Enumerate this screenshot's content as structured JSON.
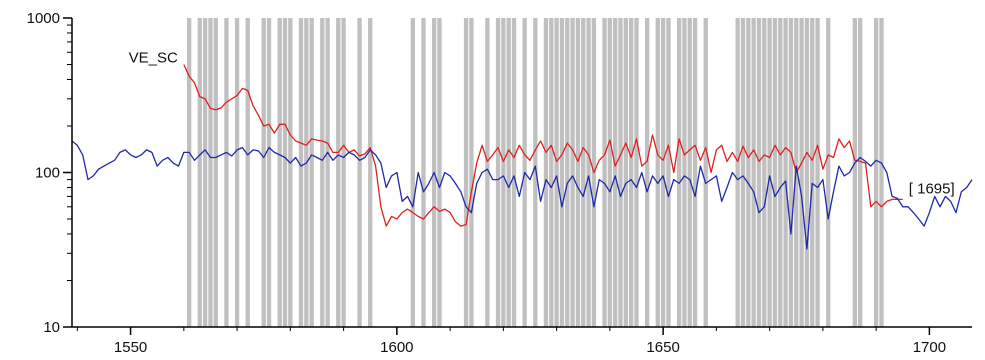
{
  "chart_data": {
    "type": "line",
    "title": "",
    "xlabel": "",
    "ylabel": "",
    "xlim": [
      1539,
      1708
    ],
    "ylim": [
      10,
      1000
    ],
    "y_scale": "log",
    "grid": false,
    "x_ticks": [
      1550,
      1600,
      1650,
      1700
    ],
    "x_tick_labels": [
      "1550",
      "1600",
      "1650",
      "1700"
    ],
    "y_ticks": [
      10,
      100,
      1000
    ],
    "y_tick_labels": [
      "10",
      "100",
      "1000"
    ],
    "shading": {
      "color": "#c0c0c0",
      "year_bands": [
        1561,
        1563,
        1564,
        1565,
        1566,
        1568,
        1570,
        1572,
        1575,
        1576,
        1578,
        1579,
        1580,
        1582,
        1583,
        1584,
        1586,
        1587,
        1589,
        1590,
        1593,
        1595,
        1603,
        1605,
        1607,
        1608,
        1613,
        1614,
        1617,
        1619,
        1620,
        1621,
        1622,
        1624,
        1626,
        1628,
        1629,
        1630,
        1631,
        1632,
        1633,
        1634,
        1635,
        1636,
        1637,
        1639,
        1640,
        1641,
        1642,
        1643,
        1644,
        1645,
        1647,
        1649,
        1650,
        1651,
        1653,
        1654,
        1655,
        1656,
        1658,
        1664,
        1665,
        1666,
        1667,
        1668,
        1669,
        1670,
        1671,
        1672,
        1673,
        1674,
        1675,
        1676,
        1677,
        1678,
        1679,
        1681,
        1686,
        1687,
        1690,
        1691
      ]
    },
    "series": [
      {
        "name": "VE_SC",
        "color": "#e02020",
        "x": [
          1560,
          1561,
          1562,
          1563,
          1564,
          1565,
          1566,
          1567,
          1568,
          1569,
          1570,
          1571,
          1572,
          1573,
          1574,
          1575,
          1576,
          1577,
          1578,
          1579,
          1580,
          1581,
          1582,
          1583,
          1584,
          1585,
          1586,
          1587,
          1588,
          1589,
          1590,
          1591,
          1592,
          1593,
          1594,
          1595,
          1596,
          1597,
          1598,
          1599,
          1600,
          1601,
          1602,
          1603,
          1604,
          1605,
          1606,
          1607,
          1608,
          1609,
          1610,
          1611,
          1612,
          1613,
          1614,
          1615,
          1616,
          1617,
          1618,
          1619,
          1620,
          1621,
          1622,
          1623,
          1624,
          1625,
          1626,
          1627,
          1628,
          1629,
          1630,
          1631,
          1632,
          1633,
          1634,
          1635,
          1636,
          1637,
          1638,
          1639,
          1640,
          1641,
          1642,
          1643,
          1644,
          1645,
          1646,
          1647,
          1648,
          1649,
          1650,
          1651,
          1652,
          1653,
          1654,
          1655,
          1656,
          1657,
          1658,
          1659,
          1660,
          1661,
          1662,
          1663,
          1664,
          1665,
          1666,
          1667,
          1668,
          1669,
          1670,
          1671,
          1672,
          1673,
          1674,
          1675,
          1676,
          1677,
          1678,
          1679,
          1680,
          1681,
          1682,
          1683,
          1684,
          1685,
          1686,
          1687,
          1688,
          1689,
          1690,
          1691,
          1692,
          1693,
          1694,
          1695
        ],
        "values": [
          500,
          420,
          380,
          310,
          300,
          260,
          255,
          262,
          285,
          300,
          315,
          350,
          340,
          270,
          235,
          200,
          205,
          180,
          205,
          205,
          175,
          160,
          155,
          150,
          165,
          162,
          160,
          155,
          135,
          135,
          150,
          135,
          140,
          128,
          132,
          145,
          110,
          60,
          45,
          52,
          50,
          55,
          58,
          55,
          52,
          50,
          55,
          60,
          56,
          58,
          55,
          48,
          45,
          46,
          75,
          115,
          150,
          118,
          130,
          145,
          118,
          140,
          125,
          150,
          130,
          120,
          140,
          160,
          135,
          150,
          118,
          130,
          155,
          140,
          118,
          145,
          130,
          100,
          120,
          130,
          162,
          110,
          130,
          155,
          125,
          165,
          110,
          118,
          175,
          130,
          120,
          150,
          100,
          165,
          130,
          140,
          150,
          120,
          145,
          100,
          140,
          150,
          118,
          135,
          118,
          148,
          125,
          140,
          118,
          130,
          125,
          150,
          130,
          145,
          135,
          100,
          115,
          135,
          120,
          150,
          105,
          130,
          125,
          165,
          145,
          160,
          120,
          118,
          115,
          60,
          65,
          60,
          65,
          67,
          67,
          67
        ]
      },
      {
        "name": "[ 1695]",
        "color": "#1f2aa8",
        "x": [
          1539,
          1540,
          1541,
          1542,
          1543,
          1544,
          1545,
          1546,
          1547,
          1548,
          1549,
          1550,
          1551,
          1552,
          1553,
          1554,
          1555,
          1556,
          1557,
          1558,
          1559,
          1560,
          1561,
          1562,
          1563,
          1564,
          1565,
          1566,
          1567,
          1568,
          1569,
          1570,
          1571,
          1572,
          1573,
          1574,
          1575,
          1576,
          1577,
          1578,
          1579,
          1580,
          1581,
          1582,
          1583,
          1584,
          1585,
          1586,
          1587,
          1588,
          1589,
          1590,
          1591,
          1592,
          1593,
          1594,
          1595,
          1596,
          1597,
          1598,
          1599,
          1600,
          1601,
          1602,
          1603,
          1604,
          1605,
          1606,
          1607,
          1608,
          1609,
          1610,
          1611,
          1612,
          1613,
          1614,
          1615,
          1616,
          1617,
          1618,
          1619,
          1620,
          1621,
          1622,
          1623,
          1624,
          1625,
          1626,
          1627,
          1628,
          1629,
          1630,
          1631,
          1632,
          1633,
          1634,
          1635,
          1636,
          1637,
          1638,
          1639,
          1640,
          1641,
          1642,
          1643,
          1644,
          1645,
          1646,
          1647,
          1648,
          1649,
          1650,
          1651,
          1652,
          1653,
          1654,
          1655,
          1656,
          1657,
          1658,
          1659,
          1660,
          1661,
          1662,
          1663,
          1664,
          1665,
          1666,
          1667,
          1668,
          1669,
          1670,
          1671,
          1672,
          1673,
          1674,
          1675,
          1676,
          1677,
          1678,
          1679,
          1680,
          1681,
          1682,
          1683,
          1684,
          1685,
          1686,
          1687,
          1688,
          1689,
          1690,
          1691,
          1692,
          1693,
          1694,
          1695,
          1696,
          1697,
          1698,
          1699,
          1700,
          1701,
          1702,
          1703,
          1704,
          1705,
          1706,
          1707,
          1708
        ],
        "values": [
          160,
          150,
          130,
          90,
          95,
          105,
          110,
          115,
          120,
          135,
          140,
          130,
          125,
          130,
          140,
          135,
          110,
          120,
          125,
          115,
          110,
          135,
          135,
          120,
          130,
          140,
          125,
          125,
          130,
          135,
          128,
          140,
          145,
          130,
          140,
          138,
          125,
          145,
          135,
          130,
          125,
          115,
          125,
          110,
          115,
          130,
          125,
          120,
          135,
          120,
          130,
          125,
          135,
          130,
          120,
          125,
          140,
          130,
          115,
          80,
          95,
          100,
          65,
          70,
          60,
          100,
          75,
          85,
          100,
          80,
          100,
          95,
          85,
          75,
          60,
          55,
          85,
          100,
          105,
          90,
          90,
          95,
          80,
          95,
          70,
          100,
          90,
          110,
          65,
          90,
          80,
          95,
          60,
          85,
          95,
          80,
          70,
          95,
          60,
          90,
          85,
          75,
          95,
          70,
          85,
          90,
          80,
          100,
          75,
          95,
          85,
          95,
          70,
          90,
          85,
          95,
          90,
          70,
          110,
          85,
          90,
          95,
          65,
          80,
          100,
          90,
          95,
          85,
          75,
          55,
          60,
          95,
          70,
          80,
          88,
          40,
          110,
          70,
          32,
          85,
          80,
          90,
          50,
          75,
          110,
          95,
          100,
          115,
          125,
          118,
          110,
          120,
          115,
          100,
          70,
          68,
          60,
          60,
          55,
          50,
          45,
          55,
          70,
          60,
          70,
          65,
          55,
          75,
          80,
          90
        ]
      }
    ]
  }
}
